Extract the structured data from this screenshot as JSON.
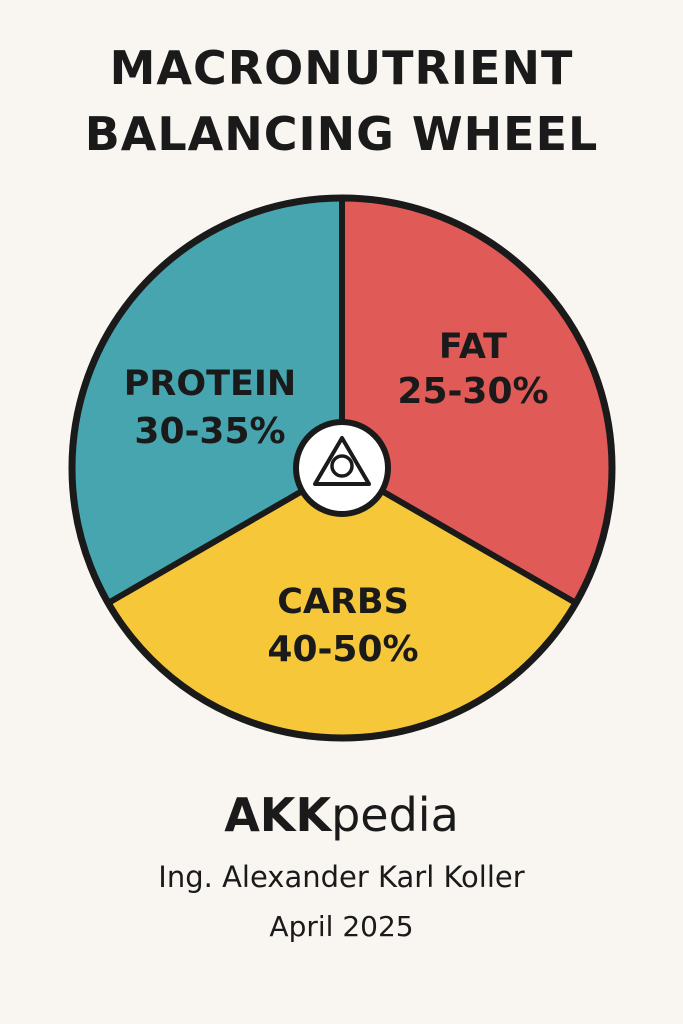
{
  "header": {
    "title_line1": "MACRONUTRIENT",
    "title_line2": "BALANCING WHEEL"
  },
  "chart_data": {
    "type": "pie",
    "title": "MACRONUTRIENT BALANCING WHEEL",
    "slices": [
      {
        "label": "FAT",
        "range": "25-30%",
        "value": 33.3,
        "color": "#e05a57"
      },
      {
        "label": "CARBS",
        "range": "40-50%",
        "value": 33.3,
        "color": "#f7c73a"
      },
      {
        "label": "PROTEIN",
        "range": "30-35%",
        "value": 33.3,
        "color": "#47a5b0"
      }
    ],
    "center_icon": "triangle-circle-icon",
    "outline_color": "#1a1a1a"
  },
  "footer": {
    "brand_bold": "AKK",
    "brand_regular": "pedia",
    "author": "Ing. Alexander Karl Koller",
    "date": "April 2025"
  }
}
